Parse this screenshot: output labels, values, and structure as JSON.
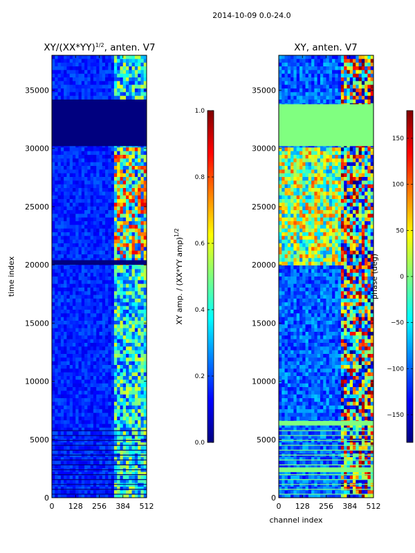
{
  "figure": {
    "suptitle": "2014-10-09 0.0-24.0"
  },
  "colors": {
    "jet": [
      "#00007f",
      "#0000ff",
      "#007fff",
      "#00ffff",
      "#7fff7f",
      "#ffff00",
      "#ff7f00",
      "#ff0000",
      "#7f0000"
    ],
    "background_amp": "#0a2fd0",
    "background_phase": "#1a58d8",
    "flagged": "#00007f",
    "flagged_phase": "#80ff80"
  },
  "chart_data": [
    {
      "type": "heatmap",
      "panel": "amplitude",
      "title": "XY/(XX*YY)",
      "title_sup": "1/2",
      "title_suffix": ", anten. V7",
      "xlabel": "",
      "ylabel": "time index",
      "xlim": [
        0,
        512
      ],
      "ylim": [
        0,
        38000
      ],
      "xticks": [
        "0",
        "128",
        "256",
        "384",
        "512"
      ],
      "yticks": [
        "0",
        "5000",
        "10000",
        "15000",
        "20000",
        "25000",
        "30000",
        "35000"
      ],
      "colorbar": {
        "label": "XY amp. / (XX*YY amp)",
        "label_sup": "1/2",
        "vmin": 0.0,
        "vmax": 1.0,
        "ticks": [
          "0.0",
          "0.2",
          "0.4",
          "0.6",
          "0.8",
          "1.0"
        ]
      },
      "flagged_time_ranges": [
        [
          30200,
          34200
        ],
        [
          20000,
          20400
        ]
      ],
      "hot_channel_range": [
        330,
        512
      ]
    },
    {
      "type": "heatmap",
      "panel": "phase",
      "title": "XY, anten. V7",
      "xlabel": "channel index",
      "ylabel": "",
      "xlim": [
        0,
        512
      ],
      "ylim": [
        0,
        38000
      ],
      "xticks": [
        "0",
        "128",
        "256",
        "384",
        "512"
      ],
      "yticks": [
        "0",
        "5000",
        "10000",
        "15000",
        "20000",
        "25000",
        "30000",
        "35000"
      ],
      "colorbar": {
        "label": "phase (deg)",
        "vmin": -180,
        "vmax": 180,
        "ticks": [
          "−150",
          "−100",
          "−50",
          "0",
          "50",
          "100",
          "150"
        ],
        "tick_values": [
          -150,
          -100,
          -50,
          0,
          50,
          100,
          150
        ]
      },
      "flagged_time_ranges": [
        [
          30200,
          33800
        ],
        [
          6200,
          6600
        ],
        [
          2200,
          2600
        ]
      ],
      "hot_channel_range": [
        330,
        512
      ]
    }
  ]
}
